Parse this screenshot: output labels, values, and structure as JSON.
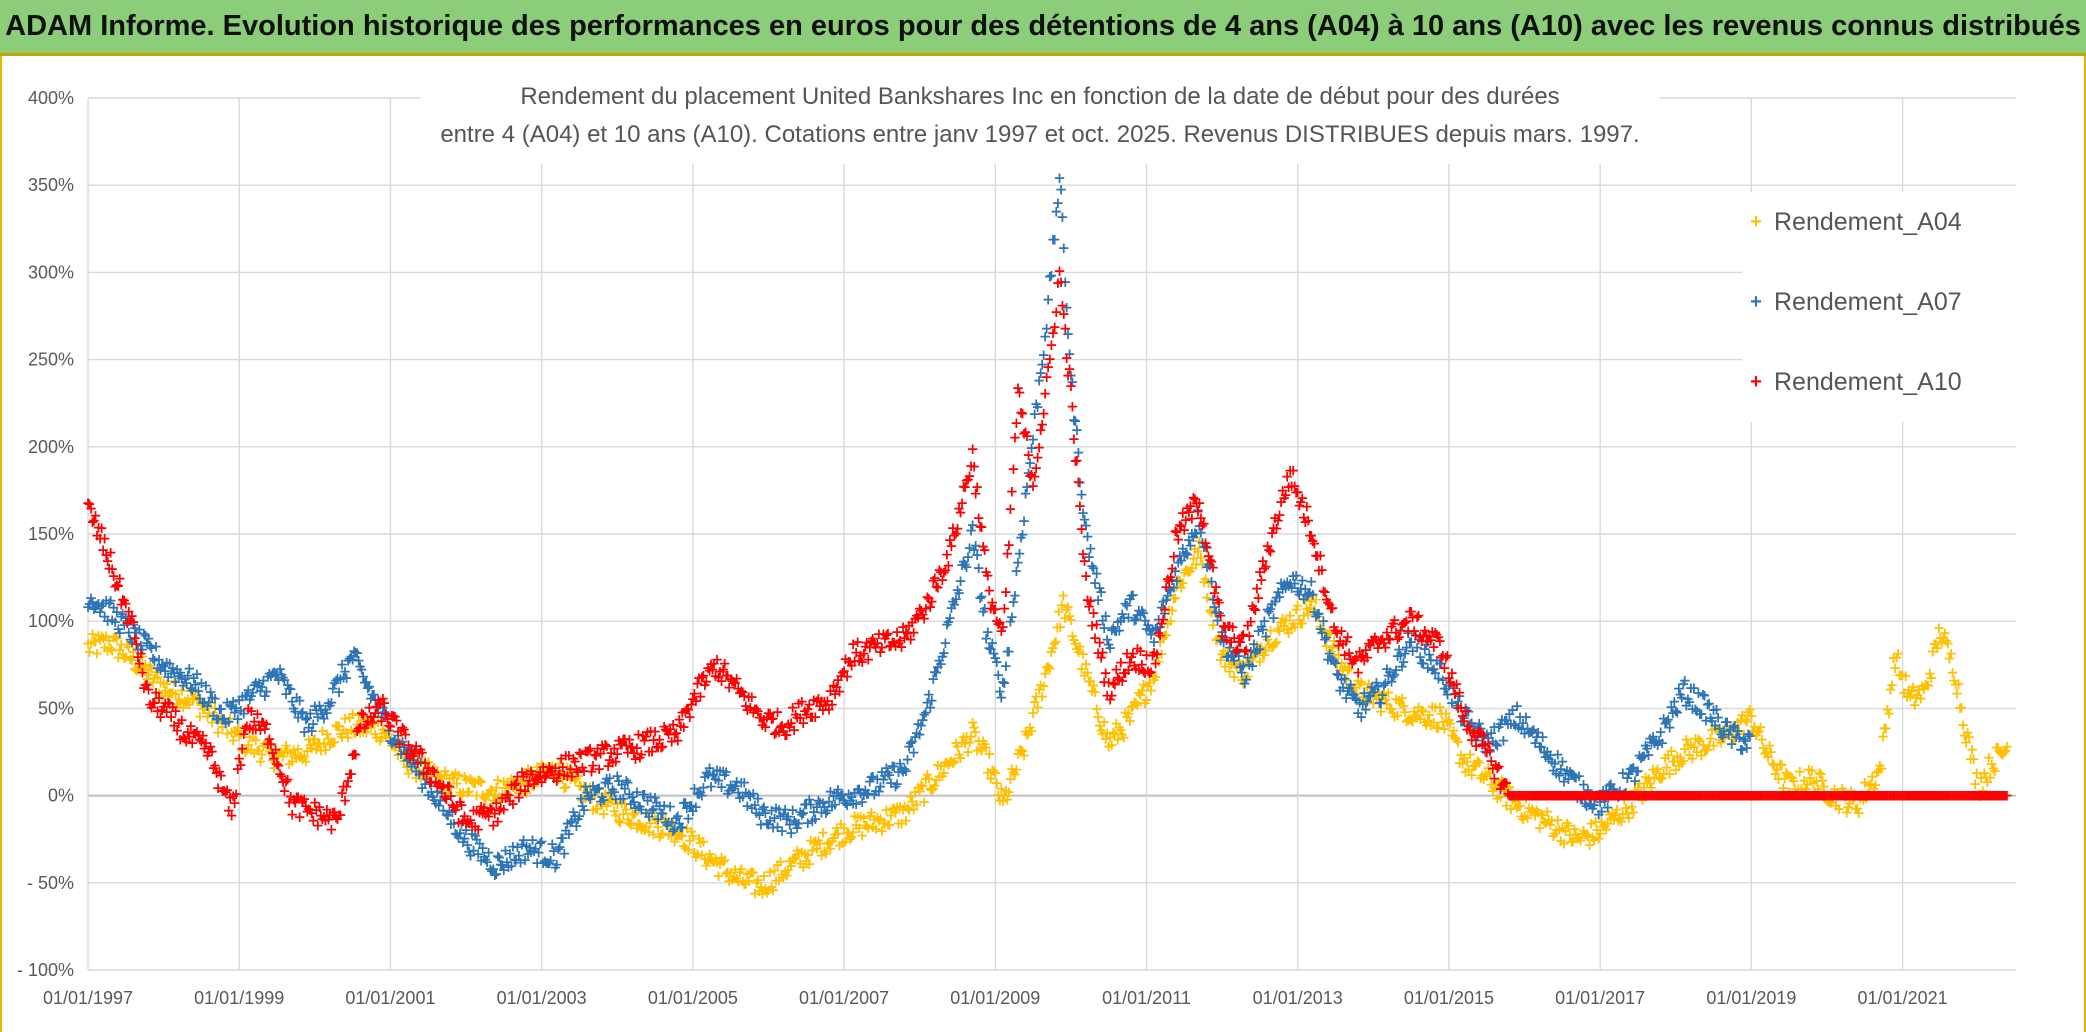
{
  "banner": {
    "title": "ADAM Informe. Evolution historique des performances en euros pour des détentions de 4 ans (A04) à 10 ans (A10) avec les revenus connus distribués"
  },
  "colors": {
    "banner_bg": "#8ccd7a",
    "banner_border": "#c8a400",
    "grid": "#d9d9d9",
    "a04": "#ffc000",
    "a07": "#2e75b6",
    "a10": "#ff0000"
  },
  "chart_data": {
    "type": "scatter",
    "title_line1": "Rendement du placement United Bankshares Inc en fonction de la date de début pour des durées",
    "title_line2": "entre 4 (A04) et 10 ans (A10). Cotations entre janv 1997 et oct. 2025. Revenus DISTRIBUES depuis mars. 1997.",
    "xlabel": "",
    "ylabel": "",
    "xlim": [
      1997.0,
      2022.5
    ],
    "ylim": [
      -100,
      400
    ],
    "y_ticks": [
      "- 100%",
      "- 50%",
      "0%",
      "50%",
      "100%",
      "150%",
      "200%",
      "250%",
      "300%",
      "350%",
      "400%"
    ],
    "y_tick_values": [
      -100,
      -50,
      0,
      50,
      100,
      150,
      200,
      250,
      300,
      350,
      400
    ],
    "x_ticks": [
      "01/01/1997",
      "01/01/1999",
      "01/01/2001",
      "01/01/2003",
      "01/01/2005",
      "01/01/2007",
      "01/01/2009",
      "01/01/2011",
      "01/01/2013",
      "01/01/2015",
      "01/01/2017",
      "01/01/2019",
      "01/01/2021"
    ],
    "x_tick_values": [
      1997,
      1999,
      2001,
      2003,
      2005,
      2007,
      2009,
      2011,
      2013,
      2015,
      2017,
      2019,
      2021
    ],
    "marker": "+",
    "legend_position": "right",
    "series": [
      {
        "name": "Rendement_A04",
        "color": "#ffc000",
        "points": [
          [
            1997.0,
            85
          ],
          [
            1997.3,
            88
          ],
          [
            1997.6,
            78
          ],
          [
            1998.0,
            62
          ],
          [
            1998.4,
            55
          ],
          [
            1998.8,
            40
          ],
          [
            1999.1,
            30
          ],
          [
            1999.5,
            22
          ],
          [
            1999.9,
            25
          ],
          [
            2000.2,
            35
          ],
          [
            2000.5,
            40
          ],
          [
            2000.9,
            38
          ],
          [
            2001.2,
            20
          ],
          [
            2001.6,
            10
          ],
          [
            2002.0,
            5
          ],
          [
            2002.4,
            3
          ],
          [
            2002.8,
            8
          ],
          [
            2003.2,
            15
          ],
          [
            2003.6,
            0
          ],
          [
            2004.0,
            -8
          ],
          [
            2004.4,
            -15
          ],
          [
            2004.8,
            -20
          ],
          [
            2005.2,
            -35
          ],
          [
            2005.6,
            -48
          ],
          [
            2005.9,
            -52
          ],
          [
            2006.3,
            -40
          ],
          [
            2006.7,
            -28
          ],
          [
            2007.0,
            -20
          ],
          [
            2007.4,
            -15
          ],
          [
            2007.8,
            -10
          ],
          [
            2008.1,
            5
          ],
          [
            2008.4,
            20
          ],
          [
            2008.7,
            35
          ],
          [
            2008.9,
            20
          ],
          [
            2009.1,
            -5
          ],
          [
            2009.4,
            30
          ],
          [
            2009.7,
            75
          ],
          [
            2009.9,
            110
          ],
          [
            2010.2,
            70
          ],
          [
            2010.5,
            30
          ],
          [
            2010.8,
            45
          ],
          [
            2011.1,
            70
          ],
          [
            2011.4,
            120
          ],
          [
            2011.7,
            140
          ],
          [
            2012.0,
            80
          ],
          [
            2012.3,
            70
          ],
          [
            2012.6,
            90
          ],
          [
            2012.9,
            100
          ],
          [
            2013.2,
            110
          ],
          [
            2013.5,
            80
          ],
          [
            2013.8,
            60
          ],
          [
            2014.1,
            55
          ],
          [
            2014.5,
            48
          ],
          [
            2014.9,
            45
          ],
          [
            2015.2,
            20
          ],
          [
            2015.5,
            10
          ],
          [
            2015.9,
            -5
          ],
          [
            2016.3,
            -15
          ],
          [
            2016.7,
            -25
          ],
          [
            2017.0,
            -20
          ],
          [
            2017.4,
            -5
          ],
          [
            2017.8,
            15
          ],
          [
            2018.1,
            25
          ],
          [
            2018.4,
            30
          ],
          [
            2018.7,
            35
          ],
          [
            2019.0,
            45
          ],
          [
            2019.2,
            25
          ],
          [
            2019.5,
            5
          ],
          [
            2019.8,
            10
          ],
          [
            2020.1,
            0
          ],
          [
            2020.4,
            -5
          ],
          [
            2020.7,
            15
          ],
          [
            2020.9,
            80
          ],
          [
            2021.1,
            55
          ],
          [
            2021.3,
            60
          ],
          [
            2021.5,
            95
          ],
          [
            2021.7,
            70
          ],
          [
            2021.8,
            45
          ],
          [
            2022.0,
            5
          ],
          [
            2022.2,
            20
          ],
          [
            2022.4,
            28
          ]
        ]
      },
      {
        "name": "Rendement_A07",
        "color": "#2e75b6",
        "points": [
          [
            1997.0,
            115
          ],
          [
            1997.3,
            105
          ],
          [
            1997.6,
            92
          ],
          [
            1998.0,
            75
          ],
          [
            1998.4,
            65
          ],
          [
            1998.8,
            45
          ],
          [
            1999.1,
            55
          ],
          [
            1999.5,
            70
          ],
          [
            1999.9,
            40
          ],
          [
            2000.2,
            55
          ],
          [
            2000.5,
            80
          ],
          [
            2000.9,
            45
          ],
          [
            2001.2,
            25
          ],
          [
            2001.6,
            0
          ],
          [
            2002.0,
            -25
          ],
          [
            2002.4,
            -40
          ],
          [
            2002.8,
            -30
          ],
          [
            2003.2,
            -35
          ],
          [
            2003.6,
            0
          ],
          [
            2004.0,
            5
          ],
          [
            2004.4,
            -5
          ],
          [
            2004.8,
            -15
          ],
          [
            2005.2,
            10
          ],
          [
            2005.6,
            5
          ],
          [
            2005.9,
            -10
          ],
          [
            2006.3,
            -15
          ],
          [
            2006.7,
            -5
          ],
          [
            2007.0,
            0
          ],
          [
            2007.4,
            5
          ],
          [
            2007.8,
            15
          ],
          [
            2008.1,
            50
          ],
          [
            2008.4,
            100
          ],
          [
            2008.7,
            150
          ],
          [
            2008.9,
            90
          ],
          [
            2009.1,
            60
          ],
          [
            2009.4,
            170
          ],
          [
            2009.7,
            280
          ],
          [
            2009.85,
            355
          ],
          [
            2010.0,
            240
          ],
          [
            2010.2,
            150
          ],
          [
            2010.5,
            90
          ],
          [
            2010.8,
            110
          ],
          [
            2011.1,
            90
          ],
          [
            2011.4,
            130
          ],
          [
            2011.7,
            160
          ],
          [
            2012.0,
            90
          ],
          [
            2012.3,
            70
          ],
          [
            2012.6,
            100
          ],
          [
            2012.9,
            125
          ],
          [
            2013.2,
            115
          ],
          [
            2013.5,
            70
          ],
          [
            2013.8,
            50
          ],
          [
            2014.1,
            60
          ],
          [
            2014.5,
            90
          ],
          [
            2014.9,
            70
          ],
          [
            2015.2,
            45
          ],
          [
            2015.5,
            30
          ],
          [
            2015.9,
            45
          ],
          [
            2016.3,
            25
          ],
          [
            2016.7,
            5
          ],
          [
            2017.0,
            -5
          ],
          [
            2017.4,
            10
          ],
          [
            2017.8,
            35
          ],
          [
            2018.1,
            60
          ],
          [
            2018.4,
            50
          ],
          [
            2018.7,
            35
          ],
          [
            2019.0,
            30
          ]
        ]
      },
      {
        "name": "Rendement_A10",
        "color": "#ff0000",
        "points": [
          [
            1997.0,
            165
          ],
          [
            1997.2,
            145
          ],
          [
            1997.4,
            120
          ],
          [
            1997.6,
            95
          ],
          [
            1997.8,
            55
          ],
          [
            1998.0,
            50
          ],
          [
            1998.3,
            35
          ],
          [
            1998.6,
            25
          ],
          [
            1998.9,
            -10
          ],
          [
            1999.1,
            45
          ],
          [
            1999.4,
            35
          ],
          [
            1999.7,
            -5
          ],
          [
            2000.0,
            -10
          ],
          [
            2000.3,
            -15
          ],
          [
            2000.6,
            40
          ],
          [
            2000.9,
            50
          ],
          [
            2001.2,
            30
          ],
          [
            2001.6,
            10
          ],
          [
            2002.0,
            -15
          ],
          [
            2002.4,
            -10
          ],
          [
            2002.8,
            10
          ],
          [
            2003.2,
            15
          ],
          [
            2003.6,
            20
          ],
          [
            2004.0,
            25
          ],
          [
            2004.4,
            30
          ],
          [
            2004.8,
            35
          ],
          [
            2005.0,
            55
          ],
          [
            2005.3,
            75
          ],
          [
            2005.6,
            60
          ],
          [
            2005.9,
            45
          ],
          [
            2006.2,
            40
          ],
          [
            2006.5,
            50
          ],
          [
            2006.8,
            55
          ],
          [
            2007.1,
            80
          ],
          [
            2007.4,
            85
          ],
          [
            2007.8,
            90
          ],
          [
            2008.1,
            110
          ],
          [
            2008.4,
            140
          ],
          [
            2008.7,
            195
          ],
          [
            2008.9,
            120
          ],
          [
            2009.1,
            90
          ],
          [
            2009.3,
            230
          ],
          [
            2009.5,
            180
          ],
          [
            2009.7,
            240
          ],
          [
            2009.85,
            300
          ],
          [
            2010.0,
            230
          ],
          [
            2010.2,
            120
          ],
          [
            2010.5,
            60
          ],
          [
            2010.8,
            80
          ],
          [
            2011.1,
            75
          ],
          [
            2011.4,
            150
          ],
          [
            2011.7,
            170
          ],
          [
            2012.0,
            95
          ],
          [
            2012.3,
            85
          ],
          [
            2012.6,
            140
          ],
          [
            2012.9,
            185
          ],
          [
            2013.2,
            150
          ],
          [
            2013.5,
            95
          ],
          [
            2013.8,
            75
          ],
          [
            2014.1,
            90
          ],
          [
            2014.5,
            100
          ],
          [
            2014.9,
            85
          ],
          [
            2015.2,
            45
          ],
          [
            2015.5,
            25
          ],
          [
            2015.8,
            0
          ],
          [
            2016.5,
            0
          ],
          [
            2017.5,
            0
          ],
          [
            2018.5,
            0
          ],
          [
            2019.5,
            0
          ],
          [
            2020.5,
            0
          ],
          [
            2021.5,
            0
          ],
          [
            2022.4,
            0
          ]
        ]
      }
    ]
  }
}
